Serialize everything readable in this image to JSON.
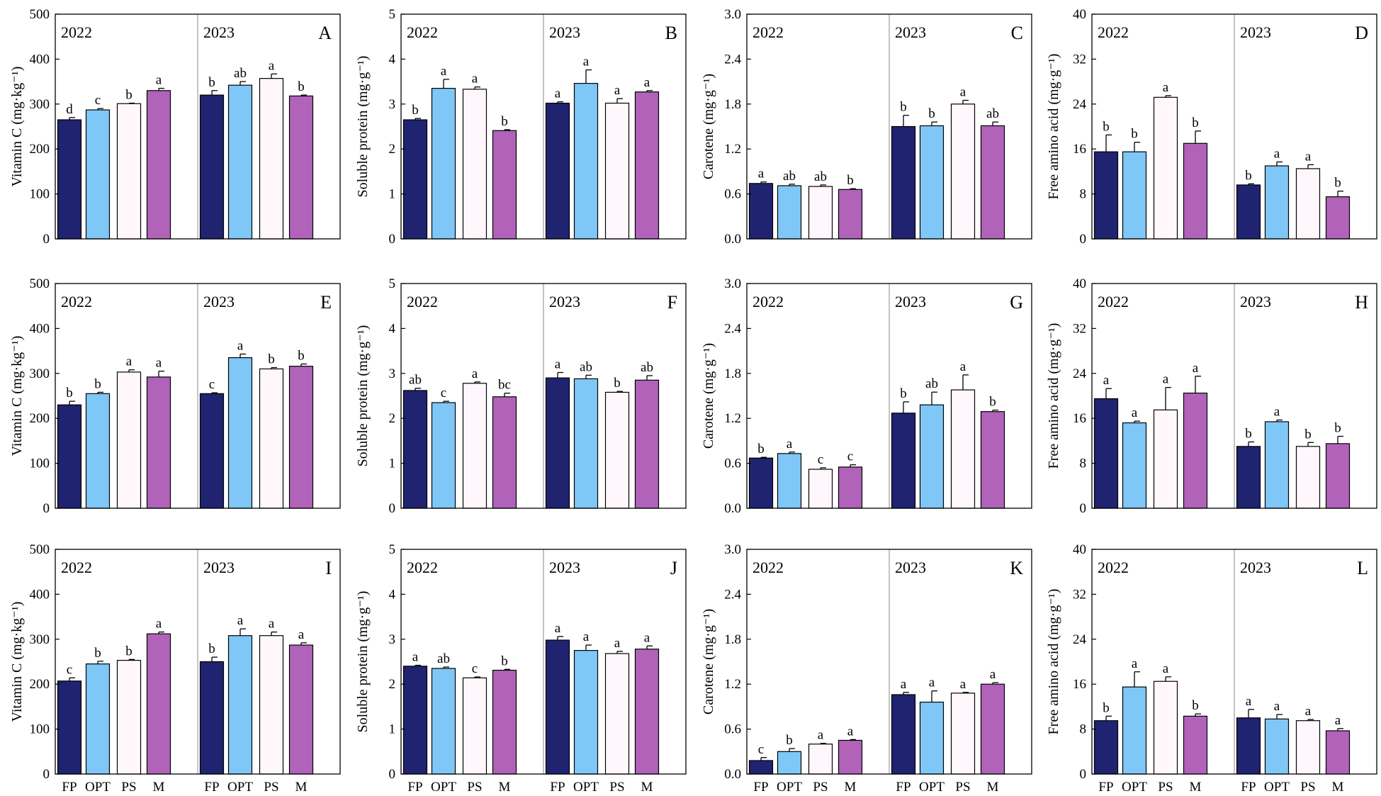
{
  "figure": {
    "years": [
      "2022",
      "2023"
    ],
    "categories": [
      "FP",
      "OPT",
      "PS",
      "M"
    ],
    "colors": {
      "FP": "#1f2370",
      "OPT": "#7fc7f7",
      "PS": "#fff7fc",
      "M": "#b063b8"
    },
    "edge_color": "#000000",
    "divider_color": "#888888"
  },
  "chart_data": [
    {
      "panel": "A",
      "type": "bar",
      "ylabel": "Vitamin C (mg·kg⁻¹)",
      "ylim": [
        0,
        500
      ],
      "yticks": [
        0,
        100,
        200,
        300,
        400,
        500
      ],
      "series": [
        {
          "year": "2022",
          "values": [
            265,
            287,
            301,
            330
          ],
          "errors": [
            5,
            3,
            1,
            5
          ],
          "letters": [
            "d",
            "c",
            "b",
            "a"
          ]
        },
        {
          "year": "2023",
          "values": [
            320,
            342,
            357,
            318
          ],
          "errors": [
            10,
            8,
            10,
            2
          ],
          "letters": [
            "b",
            "ab",
            "a",
            "b"
          ]
        }
      ]
    },
    {
      "panel": "B",
      "type": "bar",
      "ylabel": "Soluble protein (mg·g⁻¹)",
      "ylim": [
        0,
        5
      ],
      "yticks": [
        0,
        1,
        2,
        3,
        4,
        5
      ],
      "series": [
        {
          "year": "2022",
          "values": [
            2.65,
            3.35,
            3.33,
            2.41
          ],
          "errors": [
            0.03,
            0.2,
            0.05,
            0.02
          ],
          "letters": [
            "b",
            "a",
            "a",
            "b"
          ]
        },
        {
          "year": "2023",
          "values": [
            3.02,
            3.46,
            3.02,
            3.27
          ],
          "errors": [
            0.03,
            0.3,
            0.1,
            0.03
          ],
          "letters": [
            "a",
            "a",
            "a",
            "a"
          ]
        }
      ]
    },
    {
      "panel": "C",
      "type": "bar",
      "ylabel": "Carotene (mg·g⁻¹)",
      "ylim": [
        0,
        3.0
      ],
      "yticks": [
        "0.0",
        "0.6",
        "1.2",
        "1.8",
        "2.4",
        "3.0"
      ],
      "series": [
        {
          "year": "2022",
          "values": [
            0.74,
            0.71,
            0.7,
            0.66
          ],
          "errors": [
            0.02,
            0.02,
            0.02,
            0.01
          ],
          "letters": [
            "a",
            "ab",
            "ab",
            "b"
          ]
        },
        {
          "year": "2023",
          "values": [
            1.5,
            1.51,
            1.8,
            1.51
          ],
          "errors": [
            0.15,
            0.05,
            0.05,
            0.05
          ],
          "letters": [
            "b",
            "b",
            "a",
            "ab"
          ]
        }
      ]
    },
    {
      "panel": "D",
      "type": "bar",
      "ylabel": "Free amino acid (mg·g⁻¹)",
      "ylim": [
        0,
        40
      ],
      "yticks": [
        0,
        8,
        16,
        24,
        32,
        40
      ],
      "series": [
        {
          "year": "2022",
          "values": [
            15.5,
            15.5,
            25.2,
            17.0
          ],
          "errors": [
            3,
            1.7,
            0.3,
            2.2
          ],
          "letters": [
            "b",
            "b",
            "a",
            "b"
          ]
        },
        {
          "year": "2023",
          "values": [
            9.6,
            13.0,
            12.5,
            7.5
          ],
          "errors": [
            0.2,
            0.7,
            0.7,
            1.0
          ],
          "letters": [
            "b",
            "a",
            "a",
            "b"
          ]
        }
      ]
    },
    {
      "panel": "E",
      "type": "bar",
      "ylabel": "Vitamin C (mg·kg⁻¹)",
      "ylim": [
        0,
        500
      ],
      "yticks": [
        0,
        100,
        200,
        300,
        400,
        500
      ],
      "series": [
        {
          "year": "2022",
          "values": [
            230,
            255,
            303,
            292
          ],
          "errors": [
            8,
            3,
            5,
            13
          ],
          "letters": [
            "b",
            "b",
            "a",
            "a"
          ]
        },
        {
          "year": "2023",
          "values": [
            255,
            335,
            310,
            316
          ],
          "errors": [
            2,
            8,
            3,
            5
          ],
          "letters": [
            "c",
            "a",
            "b",
            "b"
          ]
        }
      ]
    },
    {
      "panel": "F",
      "type": "bar",
      "ylabel": "Soluble protein (mg·g⁻¹)",
      "ylim": [
        0,
        5
      ],
      "yticks": [
        0,
        1,
        2,
        3,
        4,
        5
      ],
      "series": [
        {
          "year": "2022",
          "values": [
            2.62,
            2.35,
            2.78,
            2.48
          ],
          "errors": [
            0.05,
            0.03,
            0.03,
            0.08
          ],
          "letters": [
            "ab",
            "c",
            "a",
            "bc"
          ]
        },
        {
          "year": "2023",
          "values": [
            2.9,
            2.88,
            2.58,
            2.85
          ],
          "errors": [
            0.12,
            0.08,
            0.02,
            0.1
          ],
          "letters": [
            "a",
            "ab",
            "b",
            "ab"
          ]
        }
      ]
    },
    {
      "panel": "G",
      "type": "bar",
      "ylabel": "Carotene (mg·g⁻¹)",
      "ylim": [
        0,
        3.0
      ],
      "yticks": [
        "0.0",
        "0.6",
        "1.2",
        "1.8",
        "2.4",
        "3.0"
      ],
      "series": [
        {
          "year": "2022",
          "values": [
            0.67,
            0.73,
            0.52,
            0.55
          ],
          "errors": [
            0.01,
            0.02,
            0.02,
            0.03
          ],
          "letters": [
            "b",
            "a",
            "c",
            "c"
          ]
        },
        {
          "year": "2023",
          "values": [
            1.27,
            1.38,
            1.58,
            1.29
          ],
          "errors": [
            0.15,
            0.17,
            0.2,
            0.02
          ],
          "letters": [
            "b",
            "ab",
            "a",
            "b"
          ]
        }
      ]
    },
    {
      "panel": "H",
      "type": "bar",
      "ylabel": "Free amino acid (mg·g⁻¹)",
      "ylim": [
        0,
        40
      ],
      "yticks": [
        0,
        8,
        16,
        24,
        32,
        40
      ],
      "series": [
        {
          "year": "2022",
          "values": [
            19.5,
            15.2,
            17.5,
            20.5
          ],
          "errors": [
            1.8,
            0.3,
            4,
            3
          ],
          "letters": [
            "a",
            "a",
            "a",
            "a"
          ]
        },
        {
          "year": "2023",
          "values": [
            11.0,
            15.4,
            11.0,
            11.5
          ],
          "errors": [
            0.8,
            0.3,
            0.7,
            1.3
          ],
          "letters": [
            "b",
            "a",
            "b",
            "b"
          ]
        }
      ]
    },
    {
      "panel": "I",
      "type": "bar",
      "ylabel": "Vitamin C (mg·kg⁻¹)",
      "ylim": [
        0,
        500
      ],
      "yticks": [
        0,
        100,
        200,
        300,
        400,
        500
      ],
      "series": [
        {
          "year": "2022",
          "values": [
            207,
            245,
            253,
            312
          ],
          "errors": [
            7,
            6,
            2,
            4
          ],
          "letters": [
            "c",
            "b",
            "b",
            "a"
          ]
        },
        {
          "year": "2023",
          "values": [
            250,
            308,
            308,
            287
          ],
          "errors": [
            10,
            15,
            8,
            5
          ],
          "letters": [
            "b",
            "a",
            "a",
            "a"
          ]
        }
      ]
    },
    {
      "panel": "J",
      "type": "bar",
      "ylabel": "Soluble protein (mg·g⁻¹)",
      "ylim": [
        0,
        5
      ],
      "yticks": [
        0,
        1,
        2,
        3,
        4,
        5
      ],
      "series": [
        {
          "year": "2022",
          "values": [
            2.4,
            2.35,
            2.14,
            2.31
          ],
          "errors": [
            0.02,
            0.03,
            0.02,
            0.02
          ],
          "letters": [
            "a",
            "ab",
            "c",
            "b"
          ]
        },
        {
          "year": "2023",
          "values": [
            2.98,
            2.75,
            2.68,
            2.78
          ],
          "errors": [
            0.08,
            0.12,
            0.05,
            0.07
          ],
          "letters": [
            "a",
            "a",
            "a",
            "a"
          ]
        }
      ]
    },
    {
      "panel": "K",
      "type": "bar",
      "ylabel": "Carotene (mg·g⁻¹)",
      "ylim": [
        0,
        3.0
      ],
      "yticks": [
        "0.0",
        "0.6",
        "1.2",
        "1.8",
        "2.4",
        "3.0"
      ],
      "series": [
        {
          "year": "2022",
          "values": [
            0.18,
            0.3,
            0.4,
            0.45
          ],
          "errors": [
            0.04,
            0.04,
            0.01,
            0.01
          ],
          "letters": [
            "c",
            "b",
            "a",
            "a"
          ]
        },
        {
          "year": "2023",
          "values": [
            1.06,
            0.96,
            1.08,
            1.2
          ],
          "errors": [
            0.03,
            0.15,
            0.01,
            0.02
          ],
          "letters": [
            "a",
            "a",
            "a",
            "a"
          ]
        }
      ]
    },
    {
      "panel": "L",
      "type": "bar",
      "ylabel": "Free amino acid (mg·g⁻¹)",
      "ylim": [
        0,
        40
      ],
      "yticks": [
        0,
        8,
        16,
        24,
        32,
        40
      ],
      "series": [
        {
          "year": "2022",
          "values": [
            9.5,
            15.5,
            16.5,
            10.3
          ],
          "errors": [
            0.8,
            2.7,
            0.8,
            0.4
          ],
          "letters": [
            "b",
            "a",
            "a",
            "b"
          ]
        },
        {
          "year": "2023",
          "values": [
            10.0,
            9.8,
            9.5,
            7.7
          ],
          "errors": [
            1.5,
            0.8,
            0.2,
            0.4
          ],
          "letters": [
            "a",
            "a",
            "a",
            "a"
          ]
        }
      ]
    }
  ]
}
